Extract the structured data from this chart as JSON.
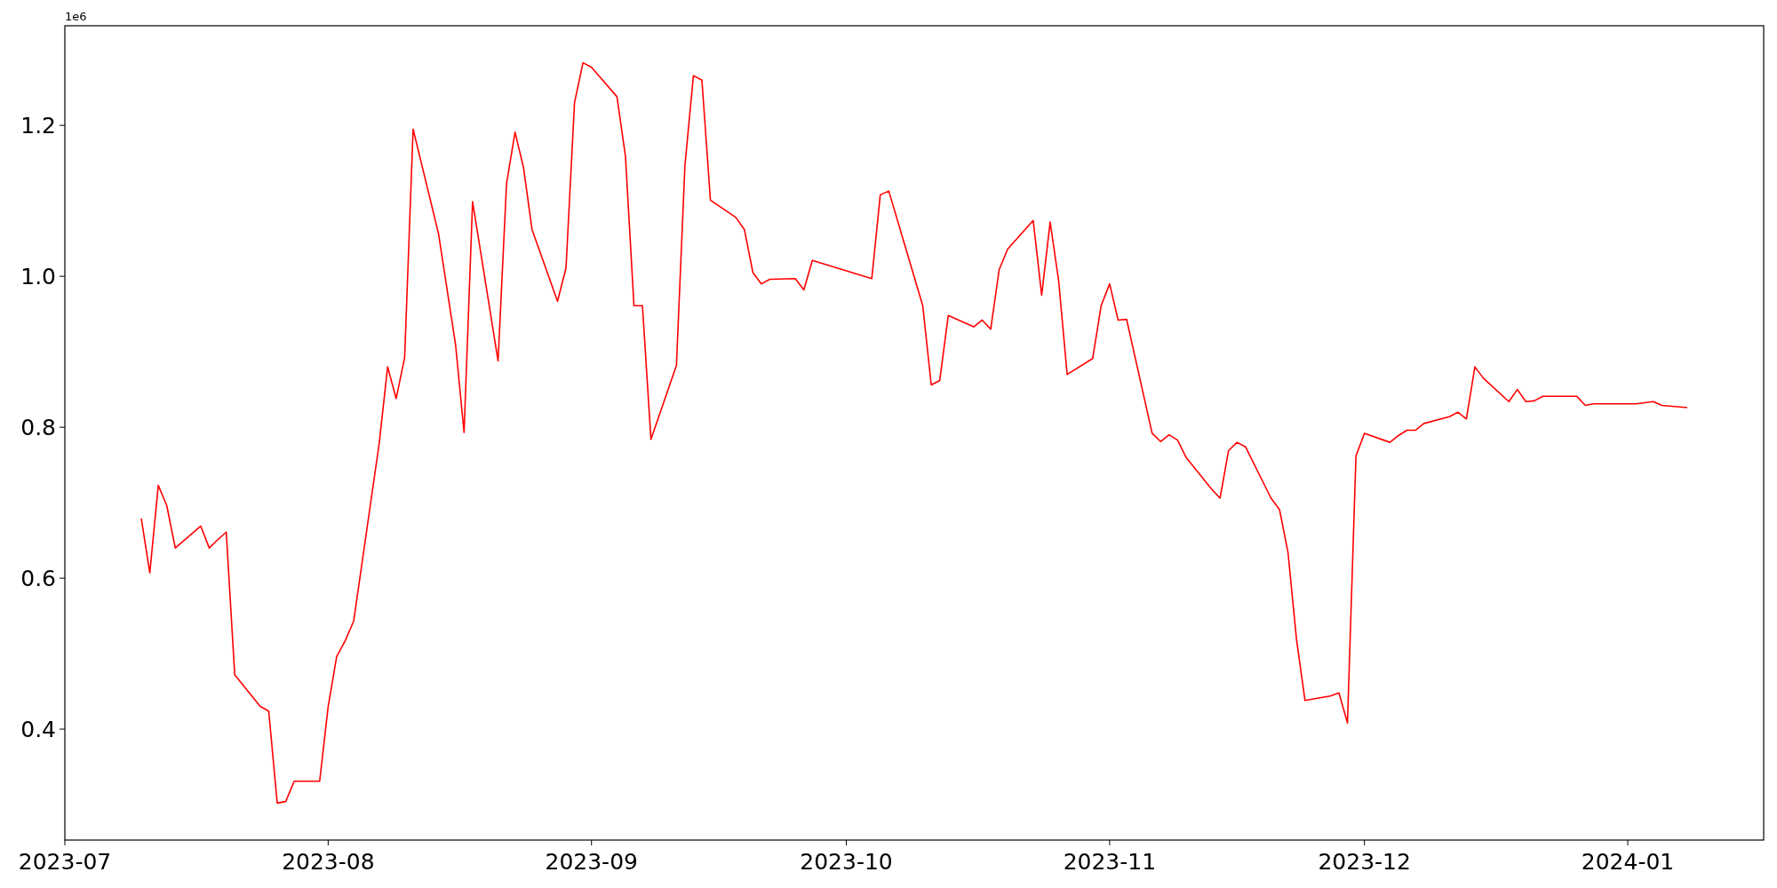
{
  "chart_data": {
    "type": "line",
    "annotations": [
      "1e6"
    ],
    "x": [
      "2023-07-10",
      "2023-07-11",
      "2023-07-12",
      "2023-07-13",
      "2023-07-14",
      "2023-07-17",
      "2023-07-18",
      "2023-07-19",
      "2023-07-20",
      "2023-07-21",
      "2023-07-24",
      "2023-07-25",
      "2023-07-26",
      "2023-07-27",
      "2023-07-28",
      "2023-07-31",
      "2023-08-01",
      "2023-08-02",
      "2023-08-03",
      "2023-08-04",
      "2023-08-07",
      "2023-08-08",
      "2023-08-09",
      "2023-08-10",
      "2023-08-11",
      "2023-08-14",
      "2023-08-16",
      "2023-08-17",
      "2023-08-18",
      "2023-08-21",
      "2023-08-22",
      "2023-08-23",
      "2023-08-24",
      "2023-08-25",
      "2023-08-28",
      "2023-08-29",
      "2023-08-30",
      "2023-08-31",
      "2023-09-01",
      "2023-09-04",
      "2023-09-05",
      "2023-09-06",
      "2023-09-07",
      "2023-09-08",
      "2023-09-11",
      "2023-09-12",
      "2023-09-13",
      "2023-09-14",
      "2023-09-15",
      "2023-09-18",
      "2023-09-19",
      "2023-09-20",
      "2023-09-21",
      "2023-09-22",
      "2023-09-25",
      "2023-09-26",
      "2023-09-27",
      "2023-10-04",
      "2023-10-05",
      "2023-10-06",
      "2023-10-10",
      "2023-10-11",
      "2023-10-12",
      "2023-10-13",
      "2023-10-16",
      "2023-10-17",
      "2023-10-18",
      "2023-10-19",
      "2023-10-20",
      "2023-10-23",
      "2023-10-24",
      "2023-10-25",
      "2023-10-26",
      "2023-10-27",
      "2023-10-30",
      "2023-10-31",
      "2023-11-01",
      "2023-11-02",
      "2023-11-03",
      "2023-11-06",
      "2023-11-07",
      "2023-11-08",
      "2023-11-09",
      "2023-11-10",
      "2023-11-13",
      "2023-11-14",
      "2023-11-15",
      "2023-11-16",
      "2023-11-17",
      "2023-11-20",
      "2023-11-21",
      "2023-11-22",
      "2023-11-23",
      "2023-11-24",
      "2023-11-27",
      "2023-11-28",
      "2023-11-29",
      "2023-11-30",
      "2023-12-01",
      "2023-12-04",
      "2023-12-05",
      "2023-12-06",
      "2023-12-07",
      "2023-12-08",
      "2023-12-11",
      "2023-12-12",
      "2023-12-13",
      "2023-12-14",
      "2023-12-15",
      "2023-12-18",
      "2023-12-19",
      "2023-12-20",
      "2023-12-21",
      "2023-12-22",
      "2023-12-26",
      "2023-12-27",
      "2023-12-28",
      "2024-01-01",
      "2024-01-02",
      "2024-01-04",
      "2024-01-05",
      "2024-01-08"
    ],
    "series": [
      {
        "color": "#ff0000",
        "values": [
          0.679,
          0.607,
          0.723,
          0.696,
          0.64,
          0.669,
          0.64,
          0.651,
          0.661,
          0.472,
          0.43,
          0.424,
          0.302,
          0.304,
          0.331,
          0.331,
          0.43,
          0.496,
          0.517,
          0.543,
          0.778,
          0.88,
          0.838,
          0.892,
          1.195,
          1.056,
          0.909,
          0.793,
          1.099,
          0.888,
          1.123,
          1.191,
          1.144,
          1.062,
          0.967,
          1.011,
          1.23,
          1.283,
          1.277,
          1.238,
          1.159,
          0.961,
          0.961,
          0.784,
          0.882,
          1.147,
          1.266,
          1.26,
          1.101,
          1.078,
          1.062,
          1.005,
          0.99,
          0.996,
          0.997,
          0.982,
          1.021,
          0.997,
          1.108,
          1.113,
          0.961,
          0.856,
          0.862,
          0.948,
          0.933,
          0.942,
          0.93,
          1.009,
          1.036,
          1.074,
          0.975,
          1.072,
          0.994,
          0.87,
          0.891,
          0.961,
          0.99,
          0.942,
          0.943,
          0.792,
          0.781,
          0.79,
          0.783,
          0.76,
          0.718,
          0.706,
          0.769,
          0.78,
          0.774,
          0.706,
          0.691,
          0.634,
          0.519,
          0.438,
          0.444,
          0.448,
          0.408,
          0.762,
          0.792,
          0.78,
          0.789,
          0.796,
          0.796,
          0.805,
          0.814,
          0.82,
          0.811,
          0.88,
          0.865,
          0.834,
          0.85,
          0.834,
          0.835,
          0.841,
          0.841,
          0.829,
          0.831,
          0.831,
          0.831,
          0.834,
          0.829,
          0.826
        ]
      }
    ],
    "xlim": [
      "2023-07-01",
      "2024-01-17"
    ],
    "xticks": [
      {
        "value": "2023-07-01",
        "label": "2023-07"
      },
      {
        "value": "2023-08-01",
        "label": "2023-08"
      },
      {
        "value": "2023-09-01",
        "label": "2023-09"
      },
      {
        "value": "2023-10-01",
        "label": "2023-10"
      },
      {
        "value": "2023-11-01",
        "label": "2023-11"
      },
      {
        "value": "2023-12-01",
        "label": "2023-12"
      },
      {
        "value": "2024-01-01",
        "label": "2024-01"
      }
    ],
    "ylim": [
      0.253,
      1.332
    ],
    "yticks": [
      0.4,
      0.6,
      0.8,
      {
        "value": 1,
        "label": "1.0"
      },
      1.2
    ],
    "grid": false,
    "marker": "none",
    "line_style": "solid"
  }
}
